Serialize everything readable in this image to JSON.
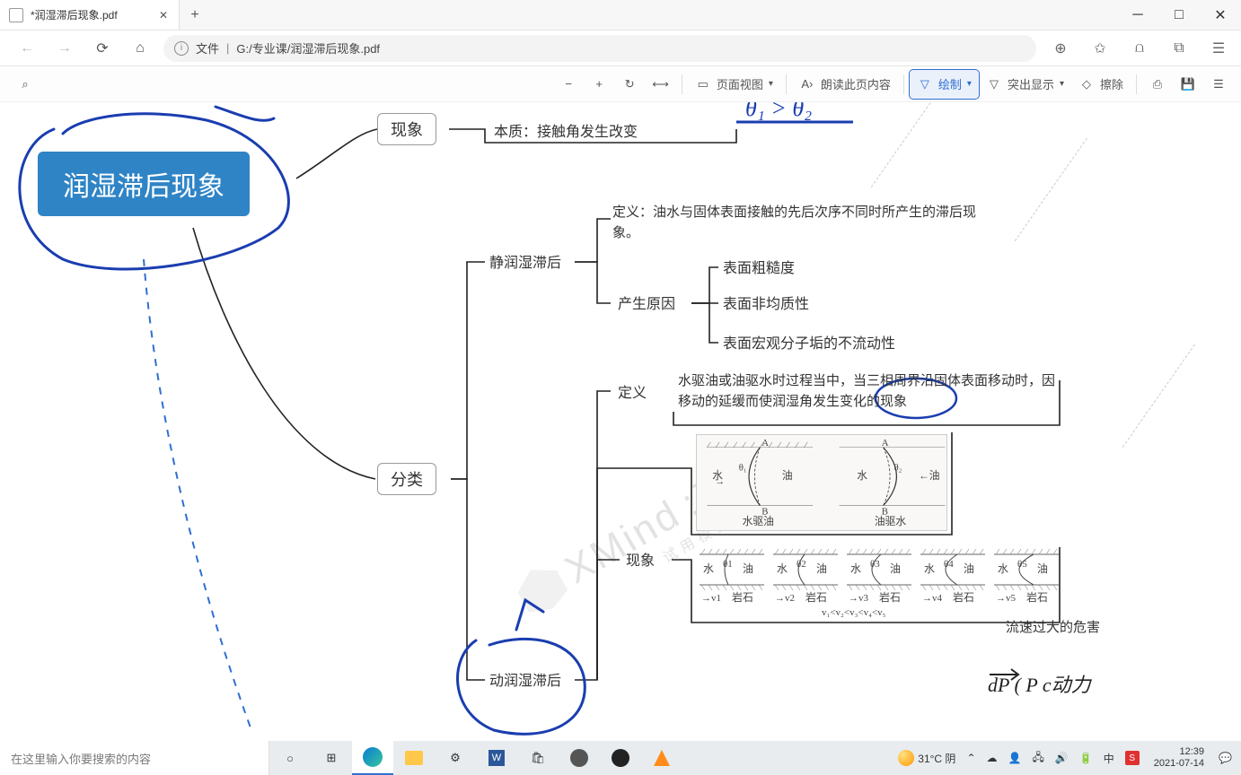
{
  "browser": {
    "tab_title": "*润湿滞后现象.pdf",
    "url_prefix": "文件",
    "url_path": "G:/专业课/润湿滞后现象.pdf",
    "win": {
      "min": "─",
      "max": "□",
      "close": "✕"
    }
  },
  "pdf_toolbar": {
    "search_icon": "⌕",
    "zoom_out": "−",
    "zoom_in": "+",
    "rotate": "↻",
    "fit": "⟷",
    "page_view": "页面视图",
    "read_aloud": "朗读此页内容",
    "draw": "绘制",
    "highlight": "突出显示",
    "erase": "擦除",
    "print": "⎙",
    "save": "💾",
    "more": "☰"
  },
  "mindmap": {
    "root": "润湿滞后现象",
    "phenomenon": "现象",
    "essence_label": "本质：",
    "essence_text": "接触角发生改变",
    "annot_theta": "θ₁ > θ₂",
    "category": "分类",
    "static": "静润湿滞后",
    "static_def_label": "定义：",
    "static_def": "油水与固体表面接触的先后次序不同时所产生的滞后现象。",
    "cause_label": "产生原因",
    "cause1": "表面粗糙度",
    "cause2": "表面非均质性",
    "cause3": "表面宏观分子垢的不流动性",
    "dyn_def_label": "定义",
    "dyn_def": "水驱油或油驱水时过程当中，当三相周界沿固体表面移动时，因移动的延缓而使润湿角发生变化的现象",
    "dyn_phenomenon": "现象",
    "dynamic": "动润湿滞后",
    "fig1_left": "水驱油",
    "fig1_right": "油驱水",
    "fig1_water": "水",
    "fig1_oil": "油",
    "fig2_rock": "岩石",
    "fig2_water": "水",
    "fig2_oil": "油",
    "fig2_formula": "v₁<v₂<v₃<v₄<v₅",
    "note_right": "流速过大的危害",
    "annot_dp": "dP ( P c动力"
  },
  "watermark": {
    "brand": "XMind",
    "sub1": "试用模式",
    "sub2": ":ZEN"
  },
  "taskbar": {
    "search_placeholder": "在这里输入你要搜索的内容",
    "weather": "31°C 阴",
    "time": "12:39",
    "date": "2021-07-14"
  },
  "colors": {
    "root_bg": "#2f84c6",
    "ink_blue": "#1a3db0",
    "active": "#2f6fd1"
  }
}
